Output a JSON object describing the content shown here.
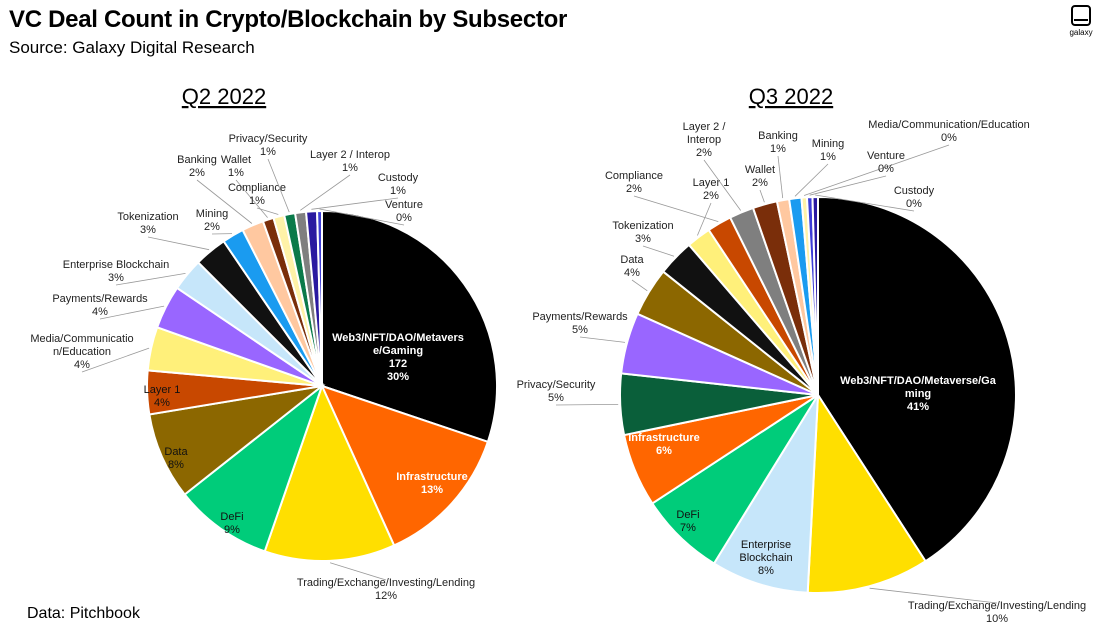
{
  "header": {
    "title": "VC Deal Count in Crypto/Blockchain by Subsector",
    "subtitle": "Source: Galaxy Digital Research",
    "logo_text": "galaxy"
  },
  "footer": {
    "source": "Data: Pitchbook"
  },
  "chart_data": [
    {
      "type": "pie",
      "title": "Q2 2022",
      "slices": [
        {
          "name": "Web3/NFT/DAO/Metaverse/Gaming",
          "lines": [
            "Web3/NFT/DAO/Metavers",
            "e/Gaming",
            "172",
            "30%"
          ],
          "value": 30,
          "color": "#000000"
        },
        {
          "name": "Infrastructure",
          "lines": [
            "Infrastructure",
            "13%"
          ],
          "value": 13,
          "color": "#ff6600"
        },
        {
          "name": "Trading/Exchange/Investing/Lending",
          "lines": [
            "Trading/Exchange/Investing/Lending",
            "12%"
          ],
          "value": 12,
          "color": "#ffdf00"
        },
        {
          "name": "DeFi",
          "lines": [
            "DeFi",
            "9%"
          ],
          "value": 9,
          "color": "#00cc7a"
        },
        {
          "name": "Data",
          "lines": [
            "Data",
            "8%"
          ],
          "value": 8,
          "color": "#8c6700"
        },
        {
          "name": "Layer 1",
          "lines": [
            "Layer 1",
            "4%"
          ],
          "value": 4,
          "color": "#c84800"
        },
        {
          "name": "Media/Communication/Education",
          "lines": [
            "Media/Communicatio",
            "n/Education",
            "4%"
          ],
          "value": 4,
          "color": "#fff07a"
        },
        {
          "name": "Payments/Rewards",
          "lines": [
            "Payments/Rewards",
            "4%"
          ],
          "value": 4,
          "color": "#9966ff"
        },
        {
          "name": "Enterprise Blockchain",
          "lines": [
            "Enterprise Blockchain",
            "3%"
          ],
          "value": 3,
          "color": "#c6e6fa"
        },
        {
          "name": "Tokenization",
          "lines": [
            "Tokenization",
            "3%"
          ],
          "value": 3,
          "color": "#111111"
        },
        {
          "name": "Mining",
          "lines": [
            "Mining",
            "2%"
          ],
          "value": 2,
          "color": "#1a9bf0"
        },
        {
          "name": "Banking",
          "lines": [
            "Banking",
            "2%"
          ],
          "value": 2,
          "color": "#ffc8a0"
        },
        {
          "name": "Wallet",
          "lines": [
            "Wallet",
            "1%"
          ],
          "value": 1,
          "color": "#7a2e0a"
        },
        {
          "name": "Compliance",
          "lines": [
            "Compliance",
            "1%"
          ],
          "value": 1,
          "color": "#fff2a8"
        },
        {
          "name": "Privacy/Security",
          "lines": [
            "Privacy/Security",
            "1%"
          ],
          "value": 1,
          "color": "#0a7a4a"
        },
        {
          "name": "Layer 2 / Interop",
          "lines": [
            "Layer 2 / Interop",
            "1%"
          ],
          "value": 1,
          "color": "#7f7f7f"
        },
        {
          "name": "Custody",
          "lines": [
            "Custody",
            "1%"
          ],
          "value": 1,
          "color": "#2a1aa0"
        },
        {
          "name": "Venture",
          "lines": [
            "Venture",
            "0%"
          ],
          "value": 0,
          "color": "#3d3dd6"
        }
      ]
    },
    {
      "type": "pie",
      "title": "Q3 2022",
      "slices": [
        {
          "name": "Web3/NFT/DAO/Metaverse/Gaming",
          "lines": [
            "Web3/NFT/DAO/Metaverse/Ga",
            "ming",
            "41%"
          ],
          "value": 41,
          "color": "#000000"
        },
        {
          "name": "Trading/Exchange/Investing/Lending",
          "lines": [
            "Trading/Exchange/Investing/Lending",
            "10%"
          ],
          "value": 10,
          "color": "#ffdf00"
        },
        {
          "name": "Enterprise Blockchain",
          "lines": [
            "Enterprise",
            "Blockchain",
            "8%"
          ],
          "value": 8,
          "color": "#c6e6fa"
        },
        {
          "name": "DeFi",
          "lines": [
            "DeFi",
            "7%"
          ],
          "value": 7,
          "color": "#00cc7a"
        },
        {
          "name": "Infrastructure",
          "lines": [
            "Infrastructure",
            "6%"
          ],
          "value": 6,
          "color": "#ff6600"
        },
        {
          "name": "Privacy/Security",
          "lines": [
            "Privacy/Security",
            "5%"
          ],
          "value": 5,
          "color": "#0a5f3a"
        },
        {
          "name": "Payments/Rewards",
          "lines": [
            "Payments/Rewards",
            "5%"
          ],
          "value": 5,
          "color": "#9966ff"
        },
        {
          "name": "Data",
          "lines": [
            "Data",
            "4%"
          ],
          "value": 4,
          "color": "#8c6700"
        },
        {
          "name": "Tokenization",
          "lines": [
            "Tokenization",
            "3%"
          ],
          "value": 3,
          "color": "#111111"
        },
        {
          "name": "Layer 1",
          "lines": [
            "Layer 1",
            "2%"
          ],
          "value": 2,
          "color": "#fff07a"
        },
        {
          "name": "Compliance",
          "lines": [
            "Compliance",
            "2%"
          ],
          "value": 2,
          "color": "#c84800"
        },
        {
          "name": "Layer 2 / Interop",
          "lines": [
            "Layer 2 /",
            "Interop",
            "2%"
          ],
          "value": 2,
          "color": "#7f7f7f"
        },
        {
          "name": "Wallet",
          "lines": [
            "Wallet",
            "2%"
          ],
          "value": 2,
          "color": "#7a2e0a"
        },
        {
          "name": "Banking",
          "lines": [
            "Banking",
            "1%"
          ],
          "value": 1,
          "color": "#ffc8a0"
        },
        {
          "name": "Mining",
          "lines": [
            "Mining",
            "1%"
          ],
          "value": 1,
          "color": "#1a9bf0"
        },
        {
          "name": "Media/Communication/Education",
          "lines": [
            "Media/Communication/Education",
            "0%"
          ],
          "value": 0,
          "color": "#fff2a8"
        },
        {
          "name": "Venture",
          "lines": [
            "Venture",
            "0%"
          ],
          "value": 0,
          "color": "#3d3dd6"
        },
        {
          "name": "Custody",
          "lines": [
            "Custody",
            "0%"
          ],
          "value": 0,
          "color": "#2a1aa0"
        }
      ]
    }
  ]
}
